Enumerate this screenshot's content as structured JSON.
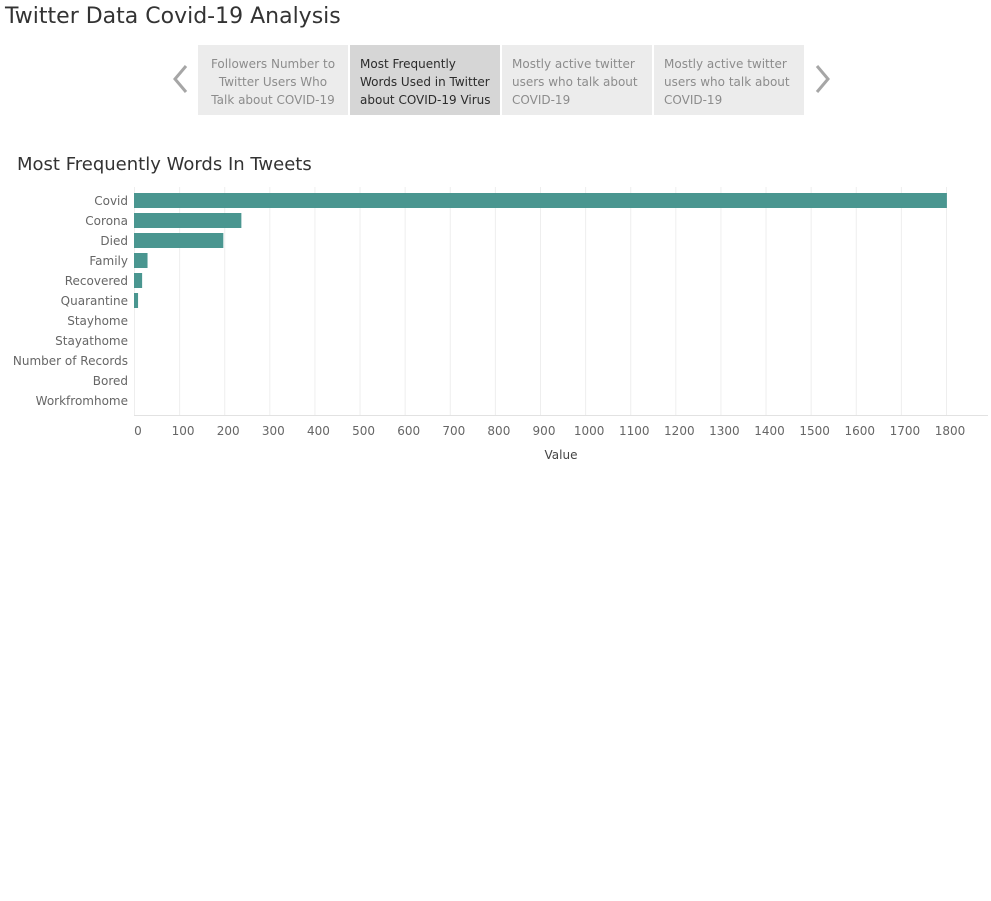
{
  "story": {
    "title": "Twitter Data Covid-19 Analysis",
    "points": [
      {
        "label": "Followers Number to Twitter Users Who Talk about COVID-19",
        "active": false
      },
      {
        "label": "Most Frequently Words Used in Twitter about COVID-19 Virus",
        "active": true
      },
      {
        "label": "Mostly active twitter users who talk about COVID-19",
        "active": false
      },
      {
        "label": "Mostly active twitter users who talk about COVID-19",
        "active": false
      }
    ],
    "prev_icon": "chevron-left-icon",
    "next_icon": "chevron-right-icon"
  },
  "colors": {
    "bar": "#4a9690",
    "grid": "#eeeeee",
    "axis_text": "#666666",
    "inactive_tab": "#ececec",
    "active_tab": "#d6d6d6"
  },
  "chart_data": {
    "type": "bar",
    "orientation": "horizontal",
    "title": "Most Frequently Words In Tweets",
    "xlabel": "Value",
    "ylabel": "",
    "categories": [
      "Covid",
      "Corona",
      "Died",
      "Family",
      "Recovered",
      "Quarantine",
      "Stayhome",
      "Stayathome",
      "Number of Records",
      "Bored",
      "Workfromhome"
    ],
    "values": [
      1802,
      238,
      198,
      30,
      18,
      9,
      0,
      0,
      0,
      0,
      0
    ],
    "xlim": [
      0,
      1800
    ],
    "xticks": [
      0,
      100,
      200,
      300,
      400,
      500,
      600,
      700,
      800,
      900,
      1000,
      1100,
      1200,
      1300,
      1400,
      1500,
      1600,
      1700,
      1800
    ],
    "grid": true,
    "legend": "none"
  }
}
